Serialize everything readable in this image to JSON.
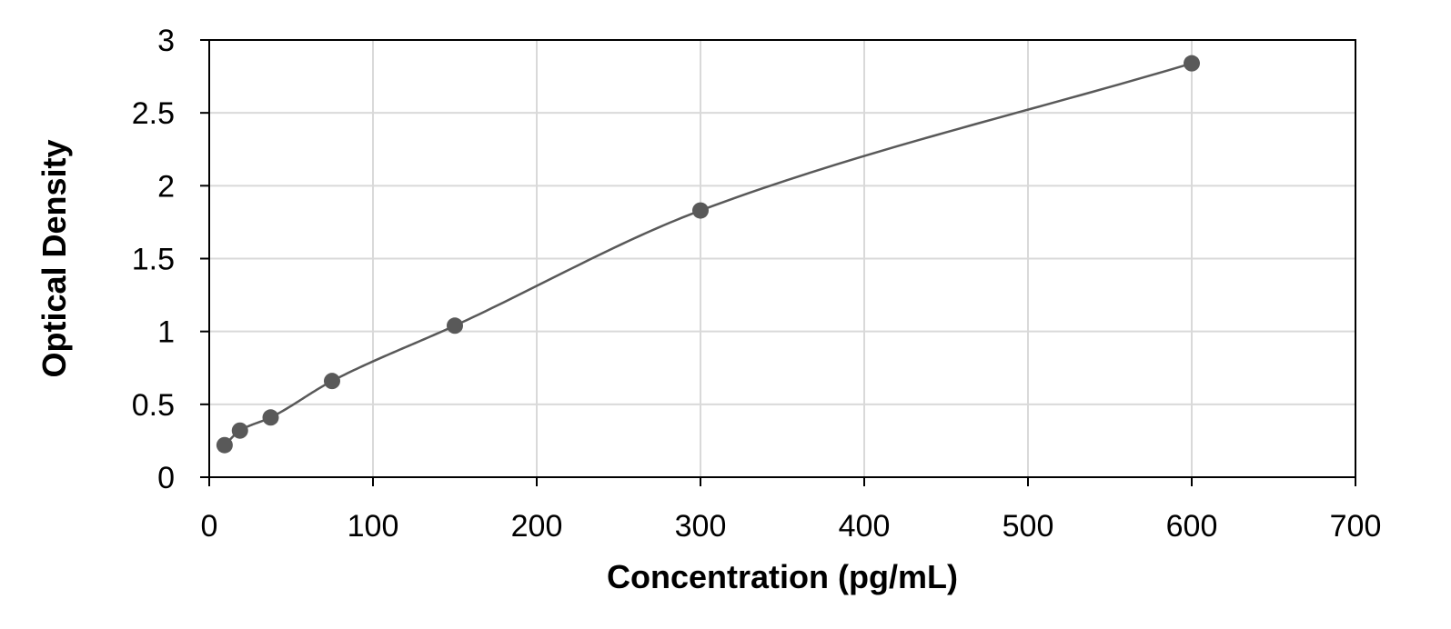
{
  "chart_data": {
    "type": "scatter",
    "title": "",
    "xlabel": "Concentration (pg/mL)",
    "ylabel": "Optical Density",
    "xlim": [
      0,
      700
    ],
    "ylim": [
      0,
      3
    ],
    "x_ticks": [
      0,
      100,
      200,
      300,
      400,
      500,
      600,
      700
    ],
    "y_ticks": [
      0,
      0.5,
      1,
      1.5,
      2,
      2.5,
      3
    ],
    "x_tick_labels": [
      "0",
      "100",
      "200",
      "300",
      "400",
      "500",
      "600",
      "700"
    ],
    "y_tick_labels": [
      "0",
      "0.5",
      "1",
      "1.5",
      "2",
      "2.5",
      "3"
    ],
    "grid": true,
    "legend": "none",
    "points": [
      {
        "x": 9.38,
        "y": 0.22
      },
      {
        "x": 18.75,
        "y": 0.32
      },
      {
        "x": 37.5,
        "y": 0.41
      },
      {
        "x": 75,
        "y": 0.66
      },
      {
        "x": 150,
        "y": 1.04
      },
      {
        "x": 300,
        "y": 1.83
      },
      {
        "x": 600,
        "y": 2.84
      }
    ],
    "fit_curve": true,
    "colors": {
      "points": "#595959",
      "curve": "#595959",
      "grid": "#d9d9d9",
      "frame": "#000000"
    }
  }
}
